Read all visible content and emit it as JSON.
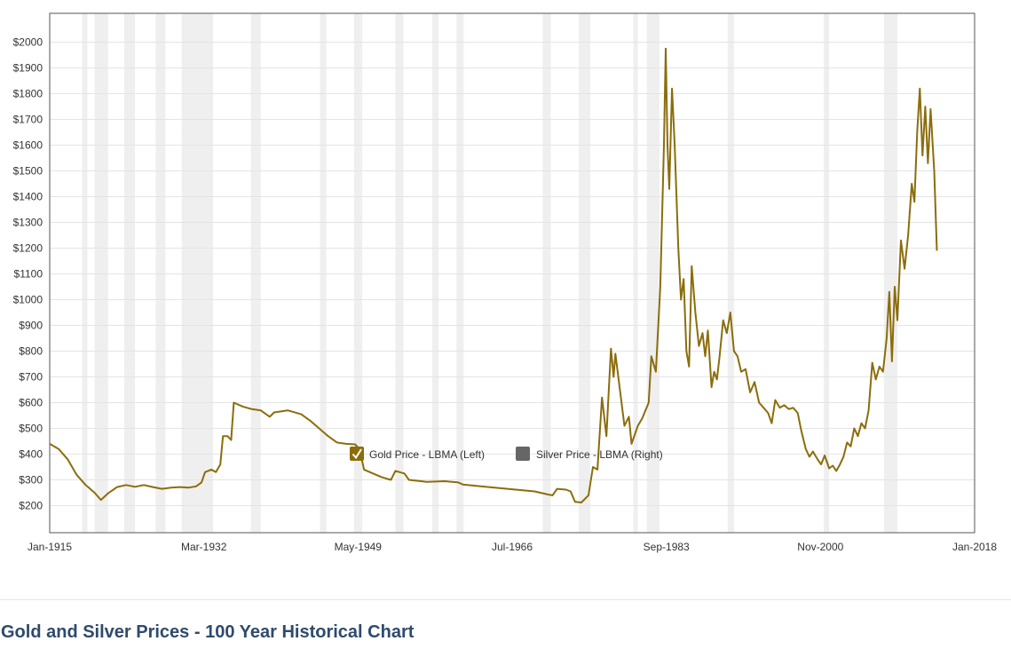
{
  "caption": "Gold and Silver Prices - 100 Year Historical Chart",
  "chart_data": {
    "type": "line",
    "title": "",
    "xlabel": "",
    "ylabel": "",
    "x_range": [
      1915.0,
      2018.0
    ],
    "ylim": [
      100,
      2100
    ],
    "grid": true,
    "y_ticks": [
      200,
      300,
      400,
      500,
      600,
      700,
      800,
      900,
      1000,
      1100,
      1200,
      1300,
      1400,
      1500,
      1600,
      1700,
      1800,
      1900,
      2000
    ],
    "y_tick_labels": [
      "$200",
      "$300",
      "$400",
      "$500",
      "$600",
      "$700",
      "$800",
      "$900",
      "$1000",
      "$1100",
      "$1200",
      "$1300",
      "$1400",
      "$1500",
      "$1600",
      "$1700",
      "$1800",
      "$1900",
      "$2000"
    ],
    "x_ticks": [
      {
        "label": "Jan-1915",
        "x": 1915.0
      },
      {
        "label": "Mar-1932",
        "x": 1932.17
      },
      {
        "label": "May-1949",
        "x": 1949.33
      },
      {
        "label": "Jul-1966",
        "x": 1966.5
      },
      {
        "label": "Sep-1983",
        "x": 1983.67
      },
      {
        "label": "Nov-2000",
        "x": 2000.83
      },
      {
        "label": "Jan-2018",
        "x": 2018.0
      }
    ],
    "shaded_periods": [
      [
        1918.6,
        1919.2
      ],
      [
        1920.0,
        1921.5
      ],
      [
        1923.3,
        1924.5
      ],
      [
        1926.8,
        1927.9
      ],
      [
        1929.7,
        1933.2
      ],
      [
        1937.4,
        1938.5
      ],
      [
        1945.1,
        1945.8
      ],
      [
        1948.9,
        1949.8
      ],
      [
        1953.5,
        1954.4
      ],
      [
        1957.6,
        1958.3
      ],
      [
        1960.3,
        1961.1
      ],
      [
        1969.9,
        1970.8
      ],
      [
        1973.9,
        1975.2
      ],
      [
        1980.0,
        1980.5
      ],
      [
        1981.5,
        1982.9
      ],
      [
        1990.5,
        1991.2
      ],
      [
        2001.2,
        2001.8
      ],
      [
        2007.9,
        2009.4
      ]
    ],
    "legend": {
      "position": "center",
      "entries": [
        {
          "label": "Gold Price - LBMA (Left)",
          "color": "#8b6d0c",
          "checked": true
        },
        {
          "label": "Silver Price - LBMA (Right)",
          "color": "#666666",
          "checked": false
        }
      ]
    },
    "series": [
      {
        "name": "Gold Price - LBMA (Left)",
        "color": "#8b6d0c",
        "points": [
          [
            1915.0,
            440
          ],
          [
            1916.0,
            420
          ],
          [
            1917.0,
            380
          ],
          [
            1918.0,
            320
          ],
          [
            1919.0,
            280
          ],
          [
            1920.0,
            250
          ],
          [
            1920.7,
            222
          ],
          [
            1921.5,
            248
          ],
          [
            1922.5,
            272
          ],
          [
            1923.5,
            280
          ],
          [
            1924.5,
            273
          ],
          [
            1925.5,
            280
          ],
          [
            1926.5,
            272
          ],
          [
            1927.5,
            265
          ],
          [
            1928.5,
            270
          ],
          [
            1929.5,
            272
          ],
          [
            1930.5,
            270
          ],
          [
            1931.3,
            275
          ],
          [
            1931.9,
            290
          ],
          [
            1932.3,
            330
          ],
          [
            1933.0,
            340
          ],
          [
            1933.5,
            330
          ],
          [
            1934.0,
            360
          ],
          [
            1934.3,
            470
          ],
          [
            1934.8,
            470
          ],
          [
            1935.2,
            455
          ],
          [
            1935.5,
            600
          ],
          [
            1936.5,
            585
          ],
          [
            1937.5,
            575
          ],
          [
            1938.5,
            570
          ],
          [
            1939.5,
            545
          ],
          [
            1940.0,
            562
          ],
          [
            1941.5,
            570
          ],
          [
            1943.0,
            555
          ],
          [
            1944.0,
            530
          ],
          [
            1945.0,
            500
          ],
          [
            1946.0,
            470
          ],
          [
            1947.0,
            445
          ],
          [
            1948.0,
            440
          ],
          [
            1949.0,
            438
          ],
          [
            1949.5,
            420
          ],
          [
            1950.0,
            340
          ],
          [
            1951.0,
            325
          ],
          [
            1952.0,
            310
          ],
          [
            1953.0,
            300
          ],
          [
            1953.5,
            335
          ],
          [
            1954.5,
            325
          ],
          [
            1955.0,
            300
          ],
          [
            1957.0,
            292
          ],
          [
            1959.0,
            295
          ],
          [
            1960.5,
            290
          ],
          [
            1961.0,
            282
          ],
          [
            1963.0,
            275
          ],
          [
            1966.0,
            265
          ],
          [
            1969.0,
            255
          ],
          [
            1970.5,
            243
          ],
          [
            1971.0,
            240
          ],
          [
            1971.5,
            265
          ],
          [
            1972.5,
            262
          ],
          [
            1973.0,
            255
          ],
          [
            1973.5,
            215
          ],
          [
            1974.2,
            212
          ],
          [
            1975.0,
            240
          ],
          [
            1975.5,
            350
          ],
          [
            1976.0,
            340
          ],
          [
            1976.5,
            620
          ],
          [
            1977.0,
            470
          ],
          [
            1977.5,
            810
          ],
          [
            1977.8,
            700
          ],
          [
            1978.0,
            790
          ],
          [
            1978.5,
            650
          ],
          [
            1979.0,
            510
          ],
          [
            1979.5,
            545
          ],
          [
            1979.8,
            440
          ],
          [
            1980.5,
            510
          ],
          [
            1981.0,
            540
          ],
          [
            1981.7,
            600
          ],
          [
            1982.0,
            780
          ],
          [
            1982.5,
            720
          ],
          [
            1983.0,
            1050
          ],
          [
            1983.4,
            1600
          ],
          [
            1983.6,
            1975
          ],
          [
            1983.8,
            1600
          ],
          [
            1984.0,
            1430
          ],
          [
            1984.3,
            1820
          ],
          [
            1984.6,
            1600
          ],
          [
            1985.0,
            1200
          ],
          [
            1985.3,
            1000
          ],
          [
            1985.6,
            1080
          ],
          [
            1985.9,
            800
          ],
          [
            1986.2,
            740
          ],
          [
            1986.5,
            1130
          ],
          [
            1986.9,
            950
          ],
          [
            1987.3,
            820
          ],
          [
            1987.7,
            870
          ],
          [
            1988.0,
            780
          ],
          [
            1988.3,
            880
          ],
          [
            1988.7,
            660
          ],
          [
            1989.0,
            720
          ],
          [
            1989.3,
            690
          ],
          [
            1989.6,
            780
          ],
          [
            1990.0,
            920
          ],
          [
            1990.4,
            870
          ],
          [
            1990.8,
            950
          ],
          [
            1991.2,
            800
          ],
          [
            1991.6,
            780
          ],
          [
            1992.0,
            720
          ],
          [
            1992.5,
            730
          ],
          [
            1993.0,
            640
          ],
          [
            1993.5,
            680
          ],
          [
            1994.0,
            600
          ],
          [
            1994.5,
            580
          ],
          [
            1995.0,
            560
          ],
          [
            1995.4,
            520
          ],
          [
            1995.8,
            610
          ],
          [
            1996.3,
            580
          ],
          [
            1996.8,
            590
          ],
          [
            1997.3,
            575
          ],
          [
            1997.8,
            580
          ],
          [
            1998.3,
            560
          ],
          [
            1998.7,
            490
          ],
          [
            1999.2,
            420
          ],
          [
            1999.6,
            390
          ],
          [
            2000.0,
            410
          ],
          [
            2000.5,
            380
          ],
          [
            2000.9,
            360
          ],
          [
            2001.3,
            395
          ],
          [
            2001.8,
            345
          ],
          [
            2002.2,
            355
          ],
          [
            2002.6,
            335
          ],
          [
            2003.0,
            360
          ],
          [
            2003.4,
            390
          ],
          [
            2003.8,
            445
          ],
          [
            2004.2,
            430
          ],
          [
            2004.6,
            500
          ],
          [
            2005.0,
            470
          ],
          [
            2005.4,
            520
          ],
          [
            2005.8,
            500
          ],
          [
            2006.2,
            570
          ],
          [
            2006.6,
            755
          ],
          [
            2007.0,
            690
          ],
          [
            2007.4,
            740
          ],
          [
            2007.8,
            720
          ],
          [
            2008.2,
            850
          ],
          [
            2008.5,
            1030
          ],
          [
            2008.8,
            760
          ],
          [
            2009.1,
            1050
          ],
          [
            2009.4,
            920
          ],
          [
            2009.8,
            1230
          ],
          [
            2010.2,
            1120
          ],
          [
            2010.6,
            1250
          ],
          [
            2011.0,
            1450
          ],
          [
            2011.3,
            1380
          ],
          [
            2011.6,
            1650
          ],
          [
            2011.9,
            1820
          ],
          [
            2012.2,
            1560
          ],
          [
            2012.5,
            1750
          ],
          [
            2012.8,
            1530
          ],
          [
            2013.1,
            1740
          ],
          [
            2013.5,
            1500
          ],
          [
            2013.8,
            1190
          ]
        ]
      }
    ]
  }
}
